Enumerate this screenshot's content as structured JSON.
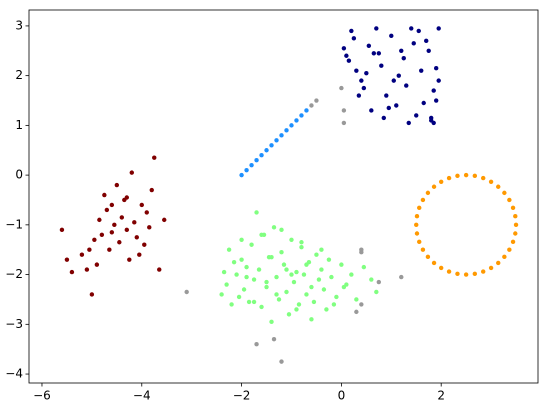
{
  "chart_data": {
    "type": "scatter",
    "xlim": [
      -6.26,
      3.94
    ],
    "ylim": [
      -4.18,
      3.32
    ],
    "xticks": [
      {
        "value": -6,
        "label": "−6"
      },
      {
        "value": -4,
        "label": "−4"
      },
      {
        "value": -2,
        "label": "−2"
      },
      0,
      2
    ],
    "yticks": [
      {
        "value": -4,
        "label": "−4"
      },
      {
        "value": -3,
        "label": "−3"
      },
      {
        "value": -2,
        "label": "−2"
      },
      {
        "value": -1,
        "label": "−1"
      },
      0,
      1,
      2,
      3
    ],
    "series": [
      {
        "color": "#000080",
        "x": [
          0.05,
          0.1,
          0.2,
          0.3,
          0.4,
          0.55,
          0.6,
          0.7,
          0.8,
          0.9,
          1.0,
          1.1,
          1.2,
          1.3,
          1.4,
          1.5,
          1.6,
          1.7,
          1.8,
          1.9,
          1.95,
          0.15,
          0.35,
          0.5,
          0.75,
          0.85,
          1.05,
          1.25,
          1.45,
          1.65,
          1.85,
          1.9,
          0.25,
          0.45,
          0.65,
          0.95,
          1.15,
          1.35,
          1.55,
          1.75,
          1.95,
          1.8,
          1.85
        ],
        "y": [
          2.55,
          2.4,
          2.9,
          2.1,
          1.9,
          2.6,
          1.3,
          2.95,
          2.2,
          1.6,
          2.8,
          1.4,
          2.5,
          1.8,
          2.95,
          1.2,
          2.1,
          2.7,
          1.1,
          1.5,
          2.95,
          2.3,
          1.6,
          2.05,
          2.45,
          1.15,
          1.9,
          2.35,
          2.65,
          1.45,
          1.7,
          2.15,
          2.75,
          1.75,
          2.45,
          1.35,
          2.0,
          1.05,
          2.9,
          2.5,
          1.9,
          1.15,
          1.05
        ]
      },
      {
        "color": "#1e90ff",
        "x": [
          -2,
          -1.9,
          -1.8,
          -1.7,
          -1.6,
          -1.5,
          -1.4,
          -1.3,
          -1.2,
          -1.1,
          -1.0,
          -0.9,
          -0.8,
          -0.7
        ],
        "y": [
          0,
          0.1,
          0.2,
          0.3,
          0.4,
          0.5,
          0.6,
          0.7,
          0.8,
          0.9,
          1.0,
          1.1,
          1.2,
          1.3
        ]
      },
      {
        "color": "#800000",
        "x": [
          -5.6,
          -5.5,
          -5.4,
          -5.2,
          -5.1,
          -5.0,
          -4.95,
          -4.9,
          -4.85,
          -4.8,
          -4.75,
          -4.7,
          -4.65,
          -4.6,
          -4.55,
          -4.5,
          -4.45,
          -4.4,
          -4.35,
          -4.3,
          -4.25,
          -4.2,
          -4.15,
          -4.1,
          -4.05,
          -4.0,
          -3.95,
          -3.9,
          -3.85,
          -3.8,
          -3.75,
          -3.65,
          -3.55,
          -5.05,
          -4.6,
          -4.3
        ],
        "y": [
          -1.1,
          -1.7,
          -1.95,
          -1.6,
          -1.9,
          -2.4,
          -1.3,
          -1.8,
          -0.9,
          -1.2,
          -0.4,
          -0.7,
          -1.5,
          -0.6,
          -1.0,
          -0.2,
          -1.35,
          -0.85,
          -0.5,
          -1.1,
          -1.7,
          0.05,
          -0.95,
          -1.25,
          -1.6,
          -0.6,
          -1.4,
          -0.75,
          -1.05,
          -0.3,
          0.35,
          -1.9,
          -0.9,
          -1.5,
          -1.15,
          -0.45
        ]
      },
      {
        "color": "#80ff80",
        "x": [
          -2.4,
          -2.35,
          -2.3,
          -2.25,
          -2.2,
          -2.1,
          -2.05,
          -2.0,
          -1.95,
          -1.9,
          -1.85,
          -1.8,
          -1.75,
          -1.7,
          -1.65,
          -1.6,
          -1.55,
          -1.5,
          -1.45,
          -1.4,
          -1.35,
          -1.3,
          -1.25,
          -1.2,
          -1.15,
          -1.1,
          -1.05,
          -1.0,
          -0.95,
          -0.9,
          -0.85,
          -0.8,
          -0.75,
          -0.7,
          -0.65,
          -0.6,
          -0.55,
          -0.5,
          -0.45,
          -0.4,
          -0.35,
          -0.3,
          -0.25,
          -0.2,
          -0.1,
          0.0,
          0.1,
          0.2,
          0.3,
          0.45,
          0.6,
          0.7,
          -1.6,
          -1.4,
          -1.2,
          -1.0,
          -0.8,
          -0.6,
          -1.9,
          -1.3,
          -1.1,
          -0.9,
          -0.7,
          -1.5,
          -2.15,
          -1.75,
          -0.4,
          -0.15,
          0.05,
          -2.0
        ],
        "y": [
          -2.4,
          -1.95,
          -2.2,
          -1.5,
          -2.6,
          -2.0,
          -2.45,
          -1.7,
          -2.3,
          -1.85,
          -2.55,
          -1.4,
          -2.1,
          -0.75,
          -1.9,
          -2.65,
          -1.2,
          -2.25,
          -1.65,
          -2.95,
          -1.05,
          -2.05,
          -2.5,
          -1.55,
          -1.8,
          -2.35,
          -2.8,
          -1.3,
          -2.15,
          -1.95,
          -2.6,
          -1.45,
          -2.0,
          -2.4,
          -1.75,
          -2.25,
          -2.55,
          -1.6,
          -2.1,
          -1.9,
          -2.3,
          -2.7,
          -1.7,
          -2.05,
          -2.45,
          -1.8,
          -2.2,
          -2.0,
          -2.5,
          -1.85,
          -2.1,
          -2.35,
          -1.2,
          -1.65,
          -1.1,
          -2.0,
          -1.35,
          -2.9,
          -2.05,
          -2.4,
          -1.9,
          -2.7,
          -1.8,
          -2.15,
          -1.75,
          -2.55,
          -1.5,
          -2.6,
          -2.25,
          -1.3
        ]
      },
      {
        "color": "#ff9900",
        "x": [
          3.5,
          3.485,
          3.44,
          3.366,
          3.266,
          3.143,
          3.0,
          2.842,
          2.674,
          2.5,
          2.326,
          2.158,
          2.0,
          1.857,
          1.734,
          1.634,
          1.56,
          1.515,
          1.5,
          1.515,
          1.56,
          1.634,
          1.734,
          1.857,
          2.0,
          2.158,
          2.326,
          2.5,
          2.674,
          2.842,
          3.0,
          3.143,
          3.266,
          3.366,
          3.44,
          3.485
        ],
        "y": [
          -1,
          -0.826,
          -0.658,
          -0.5,
          -0.357,
          -0.234,
          -0.134,
          -0.06,
          -0.015,
          0,
          -0.015,
          -0.06,
          -0.134,
          -0.234,
          -0.357,
          -0.5,
          -0.658,
          -0.826,
          -1,
          -1.174,
          -1.342,
          -1.5,
          -1.643,
          -1.766,
          -1.866,
          -1.94,
          -1.985,
          -2,
          -1.985,
          -1.94,
          -1.866,
          -1.766,
          -1.643,
          -1.5,
          -1.342,
          -1.174
        ]
      },
      {
        "color": "#999999",
        "x": [
          -0.6,
          -0.5,
          0.0,
          0.05,
          0.05,
          -3.1,
          -1.7,
          -1.35,
          -1.2,
          0.4,
          0.3,
          0.4,
          0.4,
          0.75,
          1.2
        ],
        "y": [
          1.4,
          1.5,
          1.75,
          1.3,
          1.05,
          -2.35,
          -3.4,
          -3.3,
          -3.75,
          -2.6,
          -2.75,
          -1.55,
          -1.5,
          -2.15,
          -2.05
        ]
      }
    ]
  }
}
